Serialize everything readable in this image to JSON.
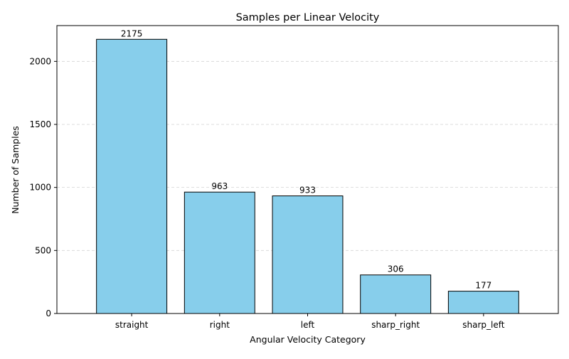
{
  "chart_data": {
    "type": "bar",
    "title": "Samples per Linear Velocity",
    "xlabel": "Angular Velocity Category",
    "ylabel": "Number of Samples",
    "categories": [
      "straight",
      "right",
      "left",
      "sharp_right",
      "sharp_left"
    ],
    "values": [
      2175,
      963,
      933,
      306,
      177
    ],
    "ylim": [
      0,
      2283.75
    ],
    "yticks": [
      0,
      500,
      1000,
      1500,
      2000
    ],
    "grid": {
      "axis": "y",
      "style": "dashed"
    },
    "data_labels": true,
    "colors": {
      "bar_fill": "#87CEEB",
      "bar_edge": "#000000",
      "grid": "#d3d3d3"
    }
  }
}
